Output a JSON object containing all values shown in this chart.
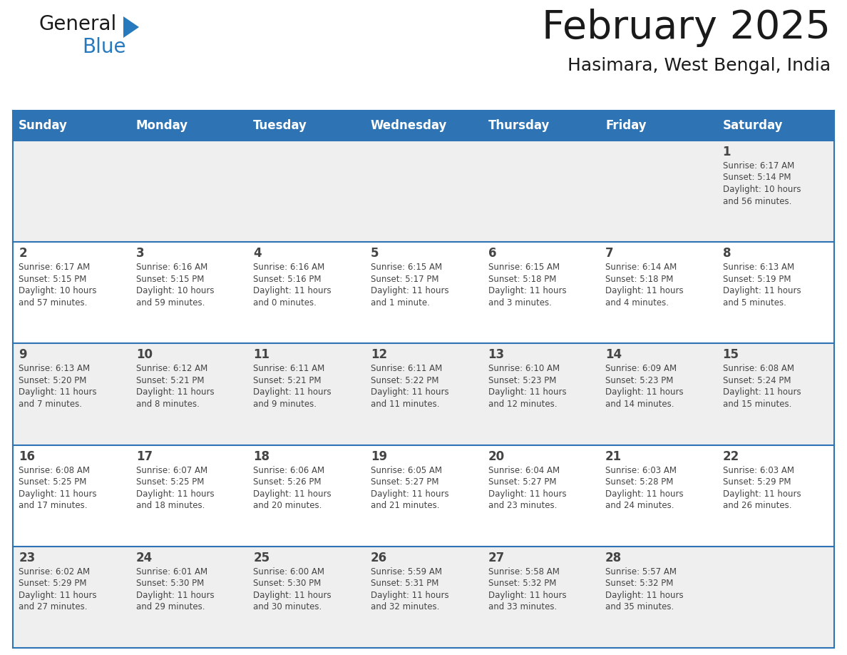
{
  "title": "February 2025",
  "subtitle": "Hasimara, West Bengal, India",
  "header_bg": "#2E74B5",
  "header_text_color": "#FFFFFF",
  "cell_bg_odd": "#EFEFEF",
  "cell_bg_even": "#FFFFFF",
  "border_color": "#2E74B5",
  "day_names": [
    "Sunday",
    "Monday",
    "Tuesday",
    "Wednesday",
    "Thursday",
    "Friday",
    "Saturday"
  ],
  "title_color": "#1a1a1a",
  "subtitle_color": "#1a1a1a",
  "text_color": "#444444",
  "days_data": [
    {
      "day": 1,
      "col": 6,
      "row": 0,
      "sunrise": "6:17 AM",
      "sunset": "5:14 PM",
      "daylight_h": "10 hours",
      "daylight_m": "56 minutes."
    },
    {
      "day": 2,
      "col": 0,
      "row": 1,
      "sunrise": "6:17 AM",
      "sunset": "5:15 PM",
      "daylight_h": "10 hours",
      "daylight_m": "57 minutes."
    },
    {
      "day": 3,
      "col": 1,
      "row": 1,
      "sunrise": "6:16 AM",
      "sunset": "5:15 PM",
      "daylight_h": "10 hours",
      "daylight_m": "59 minutes."
    },
    {
      "day": 4,
      "col": 2,
      "row": 1,
      "sunrise": "6:16 AM",
      "sunset": "5:16 PM",
      "daylight_h": "11 hours",
      "daylight_m": "0 minutes."
    },
    {
      "day": 5,
      "col": 3,
      "row": 1,
      "sunrise": "6:15 AM",
      "sunset": "5:17 PM",
      "daylight_h": "11 hours",
      "daylight_m": "1 minute."
    },
    {
      "day": 6,
      "col": 4,
      "row": 1,
      "sunrise": "6:15 AM",
      "sunset": "5:18 PM",
      "daylight_h": "11 hours",
      "daylight_m": "3 minutes."
    },
    {
      "day": 7,
      "col": 5,
      "row": 1,
      "sunrise": "6:14 AM",
      "sunset": "5:18 PM",
      "daylight_h": "11 hours",
      "daylight_m": "4 minutes."
    },
    {
      "day": 8,
      "col": 6,
      "row": 1,
      "sunrise": "6:13 AM",
      "sunset": "5:19 PM",
      "daylight_h": "11 hours",
      "daylight_m": "5 minutes."
    },
    {
      "day": 9,
      "col": 0,
      "row": 2,
      "sunrise": "6:13 AM",
      "sunset": "5:20 PM",
      "daylight_h": "11 hours",
      "daylight_m": "7 minutes."
    },
    {
      "day": 10,
      "col": 1,
      "row": 2,
      "sunrise": "6:12 AM",
      "sunset": "5:21 PM",
      "daylight_h": "11 hours",
      "daylight_m": "8 minutes."
    },
    {
      "day": 11,
      "col": 2,
      "row": 2,
      "sunrise": "6:11 AM",
      "sunset": "5:21 PM",
      "daylight_h": "11 hours",
      "daylight_m": "9 minutes."
    },
    {
      "day": 12,
      "col": 3,
      "row": 2,
      "sunrise": "6:11 AM",
      "sunset": "5:22 PM",
      "daylight_h": "11 hours",
      "daylight_m": "11 minutes."
    },
    {
      "day": 13,
      "col": 4,
      "row": 2,
      "sunrise": "6:10 AM",
      "sunset": "5:23 PM",
      "daylight_h": "11 hours",
      "daylight_m": "12 minutes."
    },
    {
      "day": 14,
      "col": 5,
      "row": 2,
      "sunrise": "6:09 AM",
      "sunset": "5:23 PM",
      "daylight_h": "11 hours",
      "daylight_m": "14 minutes."
    },
    {
      "day": 15,
      "col": 6,
      "row": 2,
      "sunrise": "6:08 AM",
      "sunset": "5:24 PM",
      "daylight_h": "11 hours",
      "daylight_m": "15 minutes."
    },
    {
      "day": 16,
      "col": 0,
      "row": 3,
      "sunrise": "6:08 AM",
      "sunset": "5:25 PM",
      "daylight_h": "11 hours",
      "daylight_m": "17 minutes."
    },
    {
      "day": 17,
      "col": 1,
      "row": 3,
      "sunrise": "6:07 AM",
      "sunset": "5:25 PM",
      "daylight_h": "11 hours",
      "daylight_m": "18 minutes."
    },
    {
      "day": 18,
      "col": 2,
      "row": 3,
      "sunrise": "6:06 AM",
      "sunset": "5:26 PM",
      "daylight_h": "11 hours",
      "daylight_m": "20 minutes."
    },
    {
      "day": 19,
      "col": 3,
      "row": 3,
      "sunrise": "6:05 AM",
      "sunset": "5:27 PM",
      "daylight_h": "11 hours",
      "daylight_m": "21 minutes."
    },
    {
      "day": 20,
      "col": 4,
      "row": 3,
      "sunrise": "6:04 AM",
      "sunset": "5:27 PM",
      "daylight_h": "11 hours",
      "daylight_m": "23 minutes."
    },
    {
      "day": 21,
      "col": 5,
      "row": 3,
      "sunrise": "6:03 AM",
      "sunset": "5:28 PM",
      "daylight_h": "11 hours",
      "daylight_m": "24 minutes."
    },
    {
      "day": 22,
      "col": 6,
      "row": 3,
      "sunrise": "6:03 AM",
      "sunset": "5:29 PM",
      "daylight_h": "11 hours",
      "daylight_m": "26 minutes."
    },
    {
      "day": 23,
      "col": 0,
      "row": 4,
      "sunrise": "6:02 AM",
      "sunset": "5:29 PM",
      "daylight_h": "11 hours",
      "daylight_m": "27 minutes."
    },
    {
      "day": 24,
      "col": 1,
      "row": 4,
      "sunrise": "6:01 AM",
      "sunset": "5:30 PM",
      "daylight_h": "11 hours",
      "daylight_m": "29 minutes."
    },
    {
      "day": 25,
      "col": 2,
      "row": 4,
      "sunrise": "6:00 AM",
      "sunset": "5:30 PM",
      "daylight_h": "11 hours",
      "daylight_m": "30 minutes."
    },
    {
      "day": 26,
      "col": 3,
      "row": 4,
      "sunrise": "5:59 AM",
      "sunset": "5:31 PM",
      "daylight_h": "11 hours",
      "daylight_m": "32 minutes."
    },
    {
      "day": 27,
      "col": 4,
      "row": 4,
      "sunrise": "5:58 AM",
      "sunset": "5:32 PM",
      "daylight_h": "11 hours",
      "daylight_m": "33 minutes."
    },
    {
      "day": 28,
      "col": 5,
      "row": 4,
      "sunrise": "5:57 AM",
      "sunset": "5:32 PM",
      "daylight_h": "11 hours",
      "daylight_m": "35 minutes."
    }
  ],
  "logo_text1": "General",
  "logo_text2": "Blue",
  "logo_color1": "#1a1a1a",
  "logo_color2": "#2779BD",
  "logo_triangle_color": "#2779BD",
  "title_fontsize": 40,
  "subtitle_fontsize": 18,
  "header_fontsize": 12,
  "day_num_fontsize": 12,
  "cell_text_fontsize": 8.5
}
